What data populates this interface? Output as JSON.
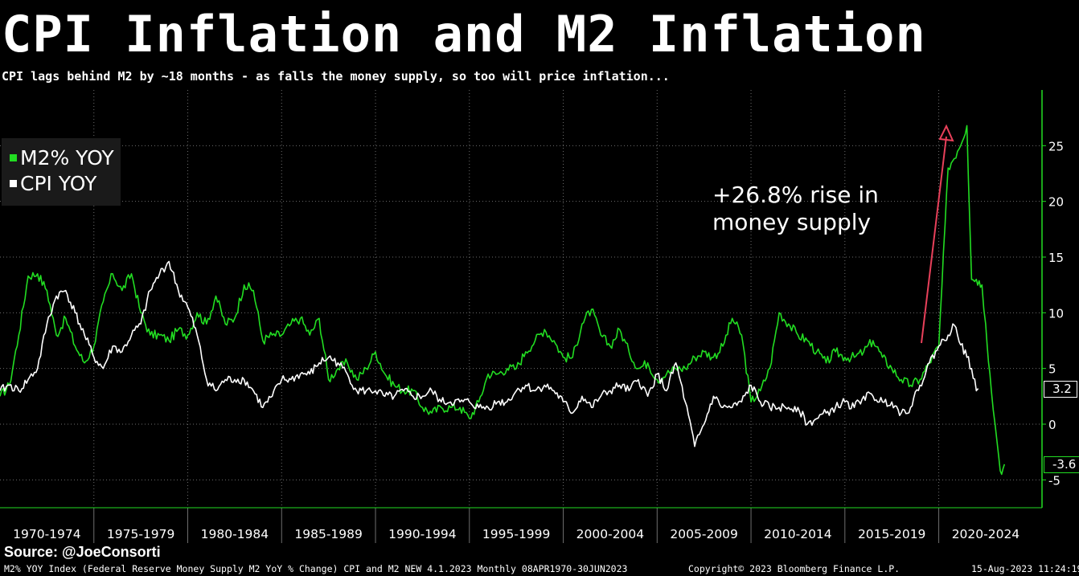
{
  "title": "CPI Inflation and M2 Inflation",
  "subtitle": "CPI lags behind M2 by ~18 months - as falls the money supply, so too will price inflation...",
  "legend": [
    {
      "label": "M2% YOY",
      "color": "#22dd22"
    },
    {
      "label": "CPI YOY",
      "color": "#ffffff"
    }
  ],
  "annotation": "+26.8% rise in\nmoney supply",
  "source": "Source: @JoeConsorti",
  "footer": {
    "left": "M2% YOY Index (Federal Reserve Money Supply M2 YoY % Change) CPI and M2 NEW 4.1.2023  Monthly 08APR1970-30JUN2023",
    "center": "Copyright© 2023 Bloomberg Finance L.P.",
    "right": "15-Aug-2023 11:24:19"
  },
  "colors": {
    "m2": "#22dd22",
    "cpi": "#ffffff",
    "arrow": "#e8405a",
    "grid": "#6e6e6e"
  },
  "chart_data": {
    "type": "line",
    "x_range": [
      1970.0,
      2025.5
    ],
    "ylim": [
      -7.5,
      30
    ],
    "y_ticks": [
      -5,
      0,
      5,
      10,
      15,
      20,
      25
    ],
    "grid": true,
    "legend_position": "top-left",
    "x_tick_labels": [
      "1970-1974",
      "1975-1979",
      "1980-1984",
      "1985-1989",
      "1990-1994",
      "1995-1999",
      "2000-2004",
      "2005-2009",
      "2010-2014",
      "2015-2019",
      "2020-2024"
    ],
    "last_values": {
      "CPI YOY": "3.2",
      "M2% YOY": "-3.6"
    },
    "series": [
      {
        "name": "M2% YOY",
        "color": "#22dd22",
        "points": [
          [
            1970.0,
            2.5
          ],
          [
            1970.5,
            3.5
          ],
          [
            1971.0,
            8
          ],
          [
            1971.5,
            13.3
          ],
          [
            1972.0,
            13.5
          ],
          [
            1972.5,
            12
          ],
          [
            1973.0,
            8
          ],
          [
            1973.5,
            9.5
          ],
          [
            1974.0,
            7
          ],
          [
            1974.5,
            5.5
          ],
          [
            1975.0,
            7
          ],
          [
            1975.5,
            11
          ],
          [
            1976.0,
            13.5
          ],
          [
            1976.5,
            12
          ],
          [
            1977.0,
            13.5
          ],
          [
            1977.5,
            10
          ],
          [
            1978.0,
            8
          ],
          [
            1978.5,
            8
          ],
          [
            1979.0,
            7.5
          ],
          [
            1979.5,
            8.5
          ],
          [
            1980.0,
            8
          ],
          [
            1980.5,
            10
          ],
          [
            1981.0,
            9
          ],
          [
            1981.5,
            11.5
          ],
          [
            1982.0,
            9
          ],
          [
            1982.5,
            9.5
          ],
          [
            1983.0,
            12.5
          ],
          [
            1983.5,
            12
          ],
          [
            1984.0,
            7.5
          ],
          [
            1984.5,
            8
          ],
          [
            1985.0,
            8
          ],
          [
            1985.5,
            9
          ],
          [
            1986.0,
            9.5
          ],
          [
            1986.5,
            8
          ],
          [
            1987.0,
            9.5
          ],
          [
            1987.5,
            4
          ],
          [
            1988.0,
            5
          ],
          [
            1988.5,
            5.5
          ],
          [
            1989.0,
            4
          ],
          [
            1989.5,
            5
          ],
          [
            1990.0,
            6.5
          ],
          [
            1990.5,
            4.5
          ],
          [
            1991.0,
            3.5
          ],
          [
            1991.5,
            3
          ],
          [
            1992.0,
            3
          ],
          [
            1992.5,
            1.5
          ],
          [
            1993.0,
            1
          ],
          [
            1993.5,
            1.5
          ],
          [
            1994.0,
            1.5
          ],
          [
            1994.5,
            1.5
          ],
          [
            1995.0,
            0.5
          ],
          [
            1995.5,
            2
          ],
          [
            1996.0,
            4.5
          ],
          [
            1996.5,
            4.5
          ],
          [
            1997.0,
            5
          ],
          [
            1997.5,
            5
          ],
          [
            1998.0,
            6.5
          ],
          [
            1998.5,
            7.5
          ],
          [
            1999.0,
            8.5
          ],
          [
            1999.5,
            7.5
          ],
          [
            2000.0,
            6
          ],
          [
            2000.5,
            6
          ],
          [
            2001.0,
            9
          ],
          [
            2001.5,
            10.3
          ],
          [
            2002.0,
            8
          ],
          [
            2002.5,
            7
          ],
          [
            2003.0,
            8.5
          ],
          [
            2003.5,
            6.5
          ],
          [
            2004.0,
            5
          ],
          [
            2004.5,
            5.5
          ],
          [
            2005.0,
            4
          ],
          [
            2005.5,
            4.5
          ],
          [
            2006.0,
            5
          ],
          [
            2006.5,
            5
          ],
          [
            2007.0,
            6
          ],
          [
            2007.5,
            6.5
          ],
          [
            2008.0,
            6
          ],
          [
            2008.5,
            7
          ],
          [
            2009.0,
            9.5
          ],
          [
            2009.5,
            8
          ],
          [
            2010.0,
            2
          ],
          [
            2010.5,
            3
          ],
          [
            2011.0,
            5
          ],
          [
            2011.5,
            10
          ],
          [
            2012.0,
            9
          ],
          [
            2012.5,
            8
          ],
          [
            2013.0,
            7.5
          ],
          [
            2013.5,
            6.5
          ],
          [
            2014.0,
            5.5
          ],
          [
            2014.5,
            6.5
          ],
          [
            2015.0,
            6
          ],
          [
            2015.5,
            6
          ],
          [
            2016.0,
            6.5
          ],
          [
            2016.5,
            7.5
          ],
          [
            2017.0,
            6
          ],
          [
            2017.5,
            5
          ],
          [
            2018.0,
            4
          ],
          [
            2018.5,
            3.5
          ],
          [
            2019.0,
            4
          ],
          [
            2019.5,
            5.5
          ],
          [
            2020.0,
            7
          ],
          [
            2020.5,
            23
          ],
          [
            2021.0,
            24.5
          ],
          [
            2021.5,
            26.8
          ],
          [
            2021.75,
            13
          ],
          [
            2022.0,
            13
          ],
          [
            2022.3,
            12.5
          ],
          [
            2022.5,
            9
          ],
          [
            2022.8,
            3
          ],
          [
            2023.0,
            0
          ],
          [
            2023.2,
            -3
          ],
          [
            2023.35,
            -4.5
          ],
          [
            2023.5,
            -3.6
          ]
        ]
      },
      {
        "name": "CPI YOY",
        "color": "#ffffff",
        "points": [
          [
            1970.0,
            3
          ],
          [
            1970.5,
            3.5
          ],
          [
            1971.0,
            3
          ],
          [
            1971.5,
            4
          ],
          [
            1972.0,
            5
          ],
          [
            1972.5,
            9
          ],
          [
            1973.0,
            11.5
          ],
          [
            1973.5,
            12
          ],
          [
            1974.0,
            10
          ],
          [
            1974.5,
            8
          ],
          [
            1975.0,
            6
          ],
          [
            1975.5,
            5
          ],
          [
            1976.0,
            7
          ],
          [
            1976.5,
            6.5
          ],
          [
            1977.0,
            8
          ],
          [
            1977.5,
            9
          ],
          [
            1978.0,
            12
          ],
          [
            1978.5,
            13.5
          ],
          [
            1979.0,
            14.6
          ],
          [
            1979.5,
            12
          ],
          [
            1980.0,
            10.5
          ],
          [
            1980.5,
            8
          ],
          [
            1981.0,
            4
          ],
          [
            1981.5,
            3
          ],
          [
            1982.0,
            4
          ],
          [
            1982.5,
            4
          ],
          [
            1983.0,
            4
          ],
          [
            1983.5,
            3
          ],
          [
            1984.0,
            1.5
          ],
          [
            1984.5,
            2.5
          ],
          [
            1985.0,
            4
          ],
          [
            1985.5,
            4
          ],
          [
            1986.0,
            4.5
          ],
          [
            1986.5,
            4.5
          ],
          [
            1987.0,
            5.5
          ],
          [
            1987.5,
            6
          ],
          [
            1988.0,
            5.5
          ],
          [
            1988.5,
            4.5
          ],
          [
            1989.0,
            3
          ],
          [
            1989.5,
            3
          ],
          [
            1990.0,
            3
          ],
          [
            1990.5,
            2.5
          ],
          [
            1991.0,
            2.5
          ],
          [
            1991.5,
            3
          ],
          [
            1992.0,
            2.5
          ],
          [
            1992.5,
            2.5
          ],
          [
            1993.0,
            3
          ],
          [
            1993.5,
            2
          ],
          [
            1994.0,
            2
          ],
          [
            1994.5,
            2
          ],
          [
            1995.0,
            2
          ],
          [
            1995.5,
            1.5
          ],
          [
            1996.0,
            1.5
          ],
          [
            1996.5,
            2
          ],
          [
            1997.0,
            2
          ],
          [
            1997.5,
            3
          ],
          [
            1998.0,
            3.5
          ],
          [
            1998.5,
            3
          ],
          [
            1999.0,
            3.5
          ],
          [
            1999.5,
            3
          ],
          [
            2000.0,
            2
          ],
          [
            2000.5,
            1
          ],
          [
            2001.0,
            2.5
          ],
          [
            2001.5,
            1.5
          ],
          [
            2002.0,
            2.5
          ],
          [
            2002.5,
            3
          ],
          [
            2003.0,
            3.5
          ],
          [
            2003.5,
            3
          ],
          [
            2004.0,
            4
          ],
          [
            2004.5,
            2.5
          ],
          [
            2005.0,
            4.5
          ],
          [
            2005.5,
            3
          ],
          [
            2006.0,
            5.5
          ],
          [
            2006.5,
            2
          ],
          [
            2007.0,
            -2
          ],
          [
            2007.5,
            0
          ],
          [
            2008.0,
            2.5
          ],
          [
            2008.5,
            1.5
          ],
          [
            2009.0,
            1.5
          ],
          [
            2009.5,
            2
          ],
          [
            2010.0,
            3.5
          ],
          [
            2010.5,
            2
          ],
          [
            2011.0,
            1.5
          ],
          [
            2011.5,
            1.5
          ],
          [
            2012.0,
            1.5
          ],
          [
            2012.5,
            1.5
          ],
          [
            2013.0,
            0
          ],
          [
            2013.5,
            0.5
          ],
          [
            2014.0,
            1
          ],
          [
            2014.5,
            1.5
          ],
          [
            2015.0,
            2
          ],
          [
            2015.5,
            1.5
          ],
          [
            2016.0,
            2.5
          ],
          [
            2016.5,
            2.5
          ],
          [
            2017.0,
            2
          ],
          [
            2017.5,
            2
          ],
          [
            2018.0,
            1
          ],
          [
            2018.5,
            1.5
          ],
          [
            2019.0,
            3.5
          ],
          [
            2019.5,
            5.5
          ],
          [
            2020.0,
            7
          ],
          [
            2020.5,
            8
          ],
          [
            2020.75,
            9
          ],
          [
            2021.0,
            8
          ],
          [
            2021.5,
            6
          ],
          [
            2021.75,
            5
          ],
          [
            2022.0,
            3
          ],
          [
            2022.1,
            3.2
          ]
        ]
      }
    ]
  }
}
